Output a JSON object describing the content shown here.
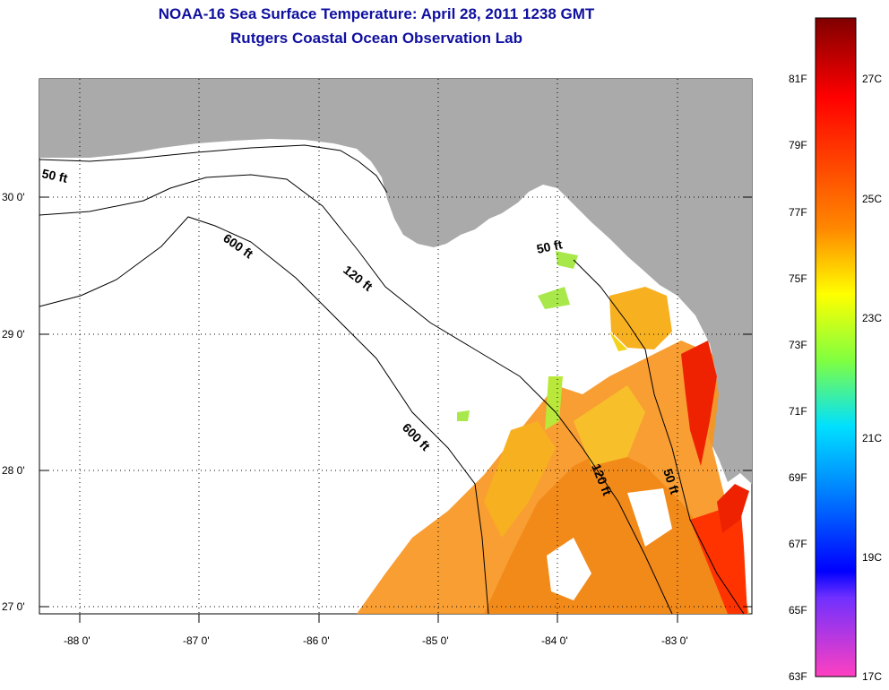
{
  "title": "NOAA-16 Sea Surface Temperature:  April 28, 2011 1238 GMT",
  "subtitle": "Rutgers Coastal Ocean Observation Lab",
  "lat_labels": [
    "30 0'",
    "29 0'",
    "28 0'",
    "27 0'"
  ],
  "lon_labels": [
    "-88 0'",
    "-87 0'",
    "-86 0'",
    "-85 0'",
    "-84 0'",
    "-83 0'"
  ],
  "contour_labels": [
    "50 ft",
    "600 ft",
    "120 ft",
    "50 ft",
    "600 ft",
    "120 ft",
    "50 ft"
  ],
  "colorbar": {
    "f_labels": [
      "81F",
      "79F",
      "77F",
      "75F",
      "73F",
      "71F",
      "69F",
      "67F",
      "65F",
      "63F"
    ],
    "c_labels": [
      "27C",
      "25C",
      "23C",
      "21C",
      "19C",
      "17C"
    ]
  },
  "colors": {
    "land": "#aaaaaa",
    "title": "#1010a0",
    "warm": "#ee2200",
    "orange": "#f7941d",
    "yellow": "#f2d21a",
    "green": "#a8e84a"
  }
}
